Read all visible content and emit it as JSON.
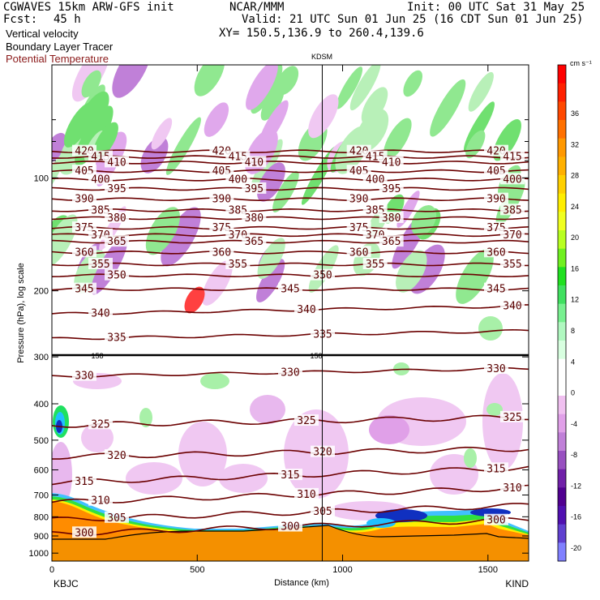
{
  "header": {
    "model_line": "CGWAVES 15km ARW-GFS init",
    "fcst_label": "Fcst:",
    "fcst_value": "45 h",
    "field1": "Vertical velocity",
    "field2": "Boundary Layer Tracer",
    "field3": "Potential Temperature",
    "org": "NCAR/MMM",
    "valid": "Valid: 21 UTC Sun 01 Jun 25 (16 CDT Sun 01 Jun 25)",
    "xy": "XY= 150.5,136.9 to 260.4,139.6",
    "init": "Init: 00 UTC Sat 31 May 25",
    "station_mid": "KDSM",
    "station_left": "KBJC",
    "station_right": "KIND"
  },
  "colors": {
    "theta_contour": "#6b0000",
    "field3_label": "#8b1a1a"
  },
  "chart_data": {
    "type": "heatmap",
    "title": "",
    "xlabel": "Distance (km)",
    "ylabel": "Pressure (hPa), log scale",
    "x_ticks": [
      0,
      500,
      1000,
      1500
    ],
    "xlim": [
      0,
      1640
    ],
    "x_marker": 930,
    "y_ticks": [
      100,
      200,
      300,
      400,
      500,
      600,
      700,
      800,
      900,
      1000
    ],
    "ylim": [
      1050,
      50
    ],
    "y_scale": "log",
    "colorbar": {
      "unit": "cm s⁻¹",
      "labels": [
        36,
        32,
        28,
        24,
        20,
        16,
        12,
        8,
        4,
        0,
        -4,
        -8,
        -12,
        -16,
        -20
      ],
      "colors": [
        "#ff0000",
        "#ff2000",
        "#ff4800",
        "#ff7000",
        "#ff9800",
        "#ffb000",
        "#ffd000",
        "#ffee00",
        "#f0ff20",
        "#b8ff20",
        "#70f020",
        "#20e020",
        "#40e060",
        "#78f090",
        "#b0f8c0",
        "#d8ffe0",
        "#ffffff",
        "#ffffff",
        "#f0c0f0",
        "#e0a0e8",
        "#c080d8",
        "#9850c0",
        "#7020a8",
        "#500090",
        "#5010b0",
        "#6040d0",
        "#8080ff"
      ]
    },
    "theta_contours": [
      {
        "value": 420,
        "p": 85
      },
      {
        "value": 415,
        "p": 88
      },
      {
        "value": 410,
        "p": 91
      },
      {
        "value": 405,
        "p": 96
      },
      {
        "value": 400,
        "p": 101
      },
      {
        "value": 395,
        "p": 107
      },
      {
        "value": 390,
        "p": 114
      },
      {
        "value": 385,
        "p": 122
      },
      {
        "value": 380,
        "p": 128
      },
      {
        "value": 375,
        "p": 136
      },
      {
        "value": 370,
        "p": 142
      },
      {
        "value": 365,
        "p": 148
      },
      {
        "value": 360,
        "p": 158
      },
      {
        "value": 355,
        "p": 170
      },
      {
        "value": 350,
        "p": 182
      },
      {
        "value": 345,
        "p": 198
      },
      {
        "value": 340,
        "p": 225
      },
      {
        "value": 335,
        "p": 262
      },
      {
        "value": 330,
        "p": 330
      },
      {
        "value": 325,
        "p": 445
      },
      {
        "value": 320,
        "p": 540
      },
      {
        "value": 315,
        "p": 620
      },
      {
        "value": 310,
        "p": 700
      },
      {
        "value": 305,
        "p": 780
      },
      {
        "value": 300,
        "p": 850
      }
    ],
    "tropopause_label": "158"
  }
}
